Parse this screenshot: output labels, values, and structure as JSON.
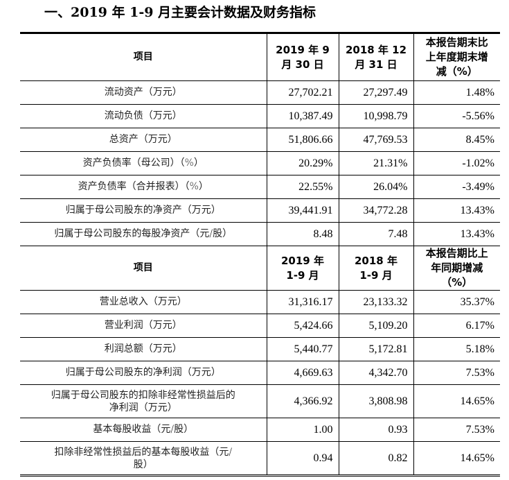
{
  "heading": "一、2019 年 1-9 月主要会计数据及财务指标",
  "section1": {
    "headers": [
      "项目",
      "2019 年 9 月 30 日",
      "2018 年 12 月 31 日",
      "本报告期末比上年度期末增减（%）"
    ],
    "header_lines": {
      "c2": [
        "2019 年 9",
        "月 30 日"
      ],
      "c3": [
        "2018 年 12",
        "月 31 日"
      ],
      "c4": [
        "本报告期末比",
        "上年度期末增",
        "减（%）"
      ]
    },
    "rows": [
      {
        "item": "流动资产（万元）",
        "current": "27,702.21",
        "prior": "27,297.49",
        "change": "1.48%"
      },
      {
        "item": "流动负债（万元）",
        "current": "10,387.49",
        "prior": "10,998.79",
        "change": "-5.56%"
      },
      {
        "item": "总资产（万元）",
        "current": "51,806.66",
        "prior": "47,769.53",
        "change": "8.45%"
      },
      {
        "item": "资产负债率（母公司）（%）",
        "current": "20.29%",
        "prior": "21.31%",
        "change": "-1.02%"
      },
      {
        "item": "资产负债率（合并报表）（%）",
        "current": "22.55%",
        "prior": "26.04%",
        "change": "-3.49%"
      },
      {
        "item": "归属于母公司股东的净资产（万元）",
        "current": "39,441.91",
        "prior": "34,772.28",
        "change": "13.43%"
      },
      {
        "item": "归属于母公司股东的每股净资产（元/股）",
        "current": "8.48",
        "prior": "7.48",
        "change": "13.43%"
      }
    ]
  },
  "section2": {
    "headers": [
      "项目",
      "2019 年 1-9 月",
      "2018 年 1-9 月",
      "本报告期比上年同期增减（%）"
    ],
    "header_lines": {
      "c2": [
        "2019 年",
        "1-9 月"
      ],
      "c3": [
        "2018 年",
        "1-9 月"
      ],
      "c4": [
        "本报告期比上",
        "年同期增减",
        "（%）"
      ]
    },
    "rows": [
      {
        "item": "营业总收入（万元）",
        "current": "31,316.17",
        "prior": "23,133.32",
        "change": "35.37%"
      },
      {
        "item": "营业利润（万元）",
        "current": "5,424.66",
        "prior": "5,109.20",
        "change": "6.17%"
      },
      {
        "item": "利润总额（万元）",
        "current": "5,440.77",
        "prior": "5,172.81",
        "change": "5.18%"
      },
      {
        "item": "归属于母公司股东的净利润（万元）",
        "current": "4,669.63",
        "prior": "4,342.70",
        "change": "7.53%"
      },
      {
        "item_lines": [
          "归属于母公司股东的扣除非经常性损益后的",
          "净利润（万元）"
        ],
        "current": "4,366.92",
        "prior": "3,808.98",
        "change": "14.65%"
      },
      {
        "item": "基本每股收益（元/股）",
        "current": "1.00",
        "prior": "0.93",
        "change": "7.53%"
      },
      {
        "item_lines": [
          "扣除非经常性损益后的基本每股收益（元/",
          "股）"
        ],
        "current": "0.94",
        "prior": "0.82",
        "change": "14.65%"
      }
    ]
  }
}
